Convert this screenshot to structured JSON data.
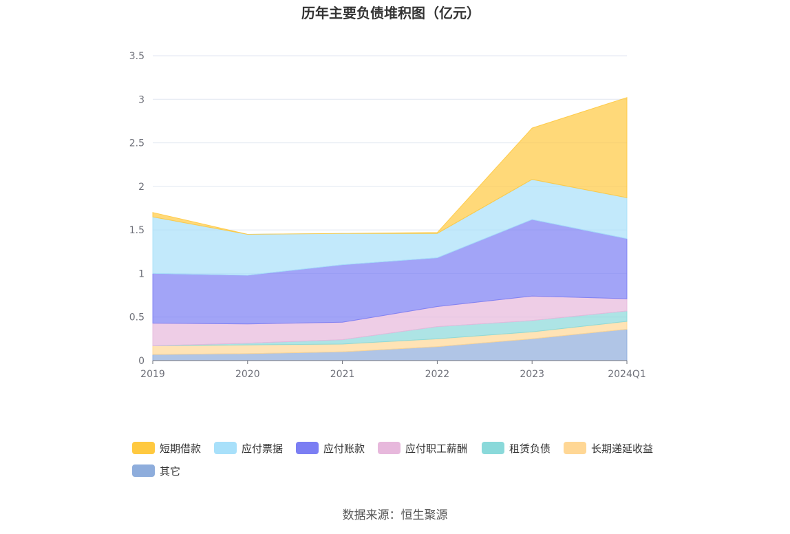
{
  "chart_data": {
    "type": "area",
    "stacked": true,
    "title": "历年主要负债堆积图（亿元）",
    "categories": [
      "2019",
      "2020",
      "2021",
      "2022",
      "2023",
      "2024Q1"
    ],
    "ylim": [
      0,
      3.5
    ],
    "yticks": [
      "0",
      "0.5",
      "1",
      "1.5",
      "2",
      "2.5",
      "3",
      "3.5"
    ],
    "grid": true,
    "legend_position": "bottom",
    "series": [
      {
        "name": "其它",
        "color": "#8eaddc",
        "values": [
          0.07,
          0.08,
          0.1,
          0.16,
          0.25,
          0.36
        ]
      },
      {
        "name": "长期递延收益",
        "color": "#ffd795",
        "values": [
          0.1,
          0.1,
          0.09,
          0.09,
          0.08,
          0.09
        ]
      },
      {
        "name": "租赁负债",
        "color": "#8ad9da",
        "values": [
          0.0,
          0.02,
          0.05,
          0.14,
          0.13,
          0.12
        ]
      },
      {
        "name": "应付职工薪酬",
        "color": "#e7b8dc",
        "values": [
          0.26,
          0.22,
          0.2,
          0.23,
          0.28,
          0.14
        ]
      },
      {
        "name": "应付账款",
        "color": "#7b7ef3",
        "values": [
          0.57,
          0.56,
          0.66,
          0.56,
          0.88,
          0.69
        ]
      },
      {
        "name": "应付票据",
        "color": "#a8e0fa",
        "values": [
          0.65,
          0.47,
          0.36,
          0.28,
          0.46,
          0.47
        ]
      },
      {
        "name": "短期借款",
        "color": "#ffc940",
        "values": [
          0.05,
          0.0,
          0.0,
          0.01,
          0.59,
          1.15
        ]
      }
    ],
    "legend_order": [
      "短期借款",
      "应付票据",
      "应付账款",
      "应付职工薪酬",
      "租赁负债",
      "长期递延收益",
      "其它"
    ],
    "source": "数据来源：恒生聚源"
  }
}
